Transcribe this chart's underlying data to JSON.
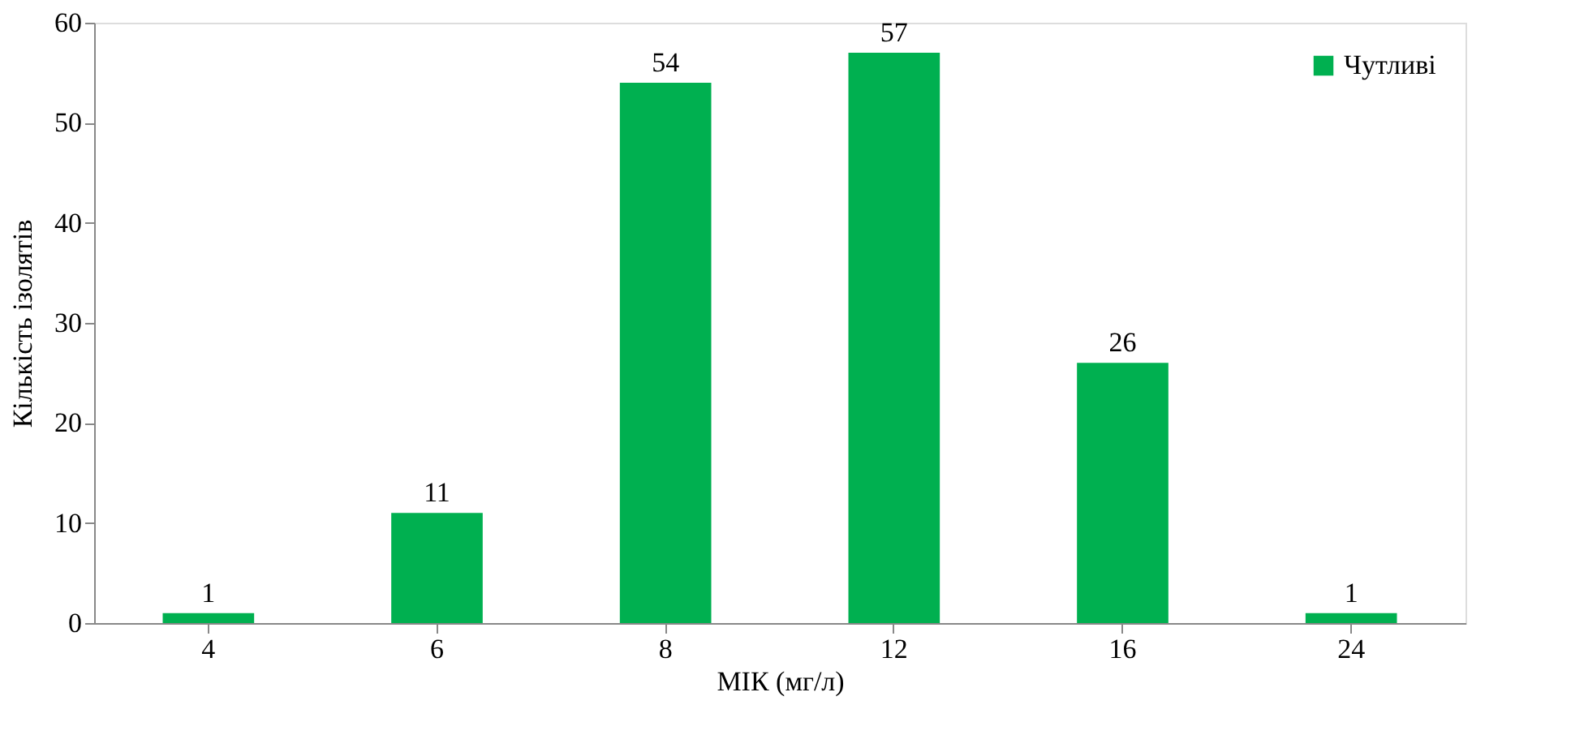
{
  "chart_data": {
    "type": "bar",
    "xlabel": "МІК (мг/л)",
    "ylabel": "Кількість ізолятів",
    "categories": [
      "4",
      "6",
      "8",
      "12",
      "16",
      "24"
    ],
    "series": [
      {
        "name": "Чутливі",
        "color": "#00b050",
        "values": [
          1,
          11,
          54,
          57,
          26,
          1
        ]
      }
    ],
    "ylim": [
      0,
      60
    ],
    "yticks": [
      0,
      10,
      20,
      30,
      40,
      50,
      60
    ],
    "grid": false,
    "legend": "top right",
    "data_labels": true
  }
}
